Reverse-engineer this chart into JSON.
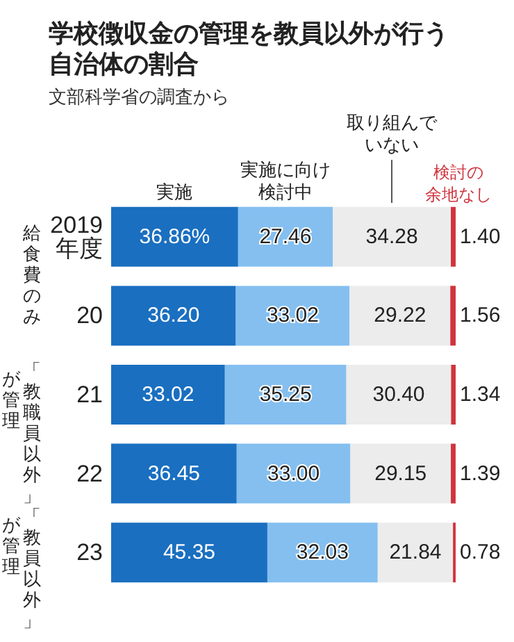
{
  "chart_data": {
    "type": "bar",
    "orientation": "horizontal",
    "stacked": true,
    "title": "学校徴収金の管理を教員以外が行う自治体の割合",
    "subtitle": "文部科学省の調査から",
    "categories": [
      "2019年度",
      "20",
      "21",
      "22",
      "23"
    ],
    "xlim": [
      0,
      100
    ],
    "tick_labels": "y",
    "grid": false,
    "legend": false,
    "series": [
      {
        "name": "実施",
        "color": "#1a6fc0",
        "values": [
          36.86,
          36.2,
          33.02,
          36.45,
          45.35
        ],
        "value_labels": [
          "36.86%",
          "36.20",
          "33.02",
          "36.45",
          "45.35"
        ]
      },
      {
        "name": "実施に向け検討中",
        "color": "#84bff0",
        "values": [
          27.46,
          33.02,
          35.25,
          33.0,
          32.03
        ],
        "value_labels": [
          "27.46",
          "33.02",
          "35.25",
          "33.00",
          "32.03"
        ]
      },
      {
        "name": "取り組んでいない",
        "color": "#ececec",
        "values": [
          34.28,
          29.22,
          30.4,
          29.15,
          21.84
        ],
        "value_labels": [
          "34.28",
          "29.22",
          "30.40",
          "29.15",
          "21.84"
        ]
      },
      {
        "name": "検討の余地なし",
        "color": "#d0343e",
        "values": [
          1.4,
          1.56,
          1.34,
          1.39,
          0.78
        ],
        "value_labels": [
          "1.40",
          "1.56",
          "1.34",
          "1.39",
          "0.78"
        ]
      }
    ],
    "annotations": [
      "給食費のみ",
      "「教職員以外」",
      "が管理",
      "「教員以外」",
      "が管理"
    ]
  }
}
